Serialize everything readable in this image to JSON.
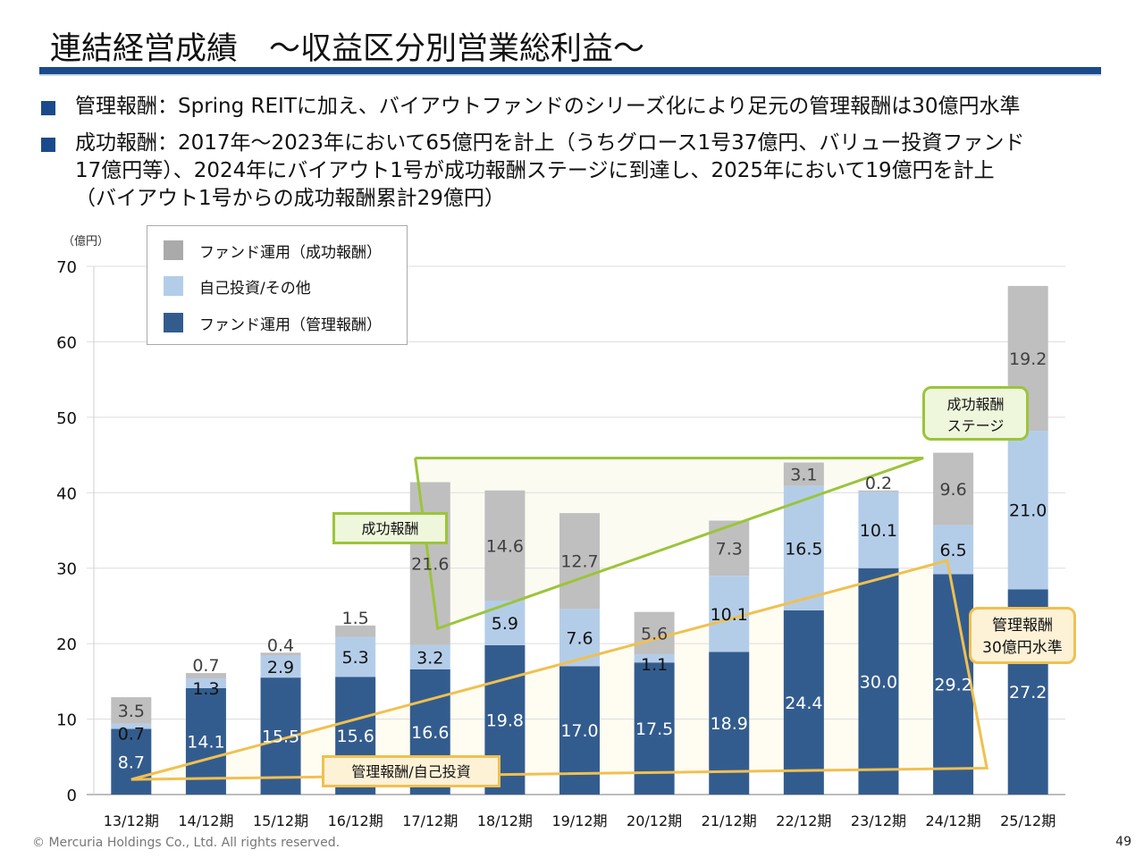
{
  "header": {
    "title": "連結経営成績　～収益区分別営業総利益～",
    "accent_color": "#1b4a8c"
  },
  "bullets": [
    {
      "lines": [
        "管理報酬：Spring REITに加え、バイアウトファンドのシリーズ化により足元の管理報酬は30億円水準"
      ]
    },
    {
      "lines": [
        "成功報酬：2017年～2023年において65億円を計上（うちグロース1号37億円、バリュー投資ファンド",
        "17億円等）、2024年にバイアウト1号が成功報酬ステージに到達し、2025年において19億円を計上",
        "（バイアウト1号からの成功報酬累計29億円）"
      ]
    }
  ],
  "chart_data": {
    "type": "bar",
    "stacked": true,
    "title": "",
    "xlabel": "",
    "ylabel": "（億円）",
    "ylim": [
      0,
      70
    ],
    "yticks": [
      0,
      10,
      20,
      30,
      40,
      50,
      60,
      70
    ],
    "grid": true,
    "legend_position": "top-left",
    "categories": [
      "13/12期",
      "14/12期",
      "15/12期",
      "16/12期",
      "17/12期",
      "18/12期",
      "19/12期",
      "20/12期",
      "21/12期",
      "22/12期",
      "23/12期",
      "24/12期",
      "25/12期"
    ],
    "series": [
      {
        "name": "ファンド運用（管理報酬）",
        "color": "#335c8e",
        "label_color": "#ffffff",
        "values": [
          8.7,
          14.1,
          15.5,
          15.6,
          16.6,
          19.8,
          17.0,
          17.5,
          18.9,
          24.4,
          30.0,
          29.2,
          27.2
        ]
      },
      {
        "name": "自己投資/その他",
        "color": "#b3cde9",
        "label_color": "#111111",
        "values": [
          0.7,
          1.3,
          2.9,
          5.3,
          3.2,
          5.9,
          7.6,
          1.1,
          10.1,
          16.5,
          10.1,
          6.5,
          21.0
        ]
      },
      {
        "name": "ファンド運用（成功報酬）",
        "color": "#bfbfbf",
        "label_color": "#404040",
        "values": [
          3.5,
          0.7,
          0.4,
          1.5,
          21.6,
          14.6,
          12.7,
          5.6,
          7.3,
          3.1,
          0.2,
          9.6,
          19.2
        ]
      }
    ],
    "legend_order": [
      "ファンド運用（成功報酬）",
      "自己投資/その他",
      "ファンド運用（管理報酬）"
    ],
    "annotations": [
      {
        "text": "成功報酬",
        "style": "green-box"
      },
      {
        "text": "成功報酬\nステージ",
        "style": "green-rounded"
      },
      {
        "text": "管理報酬/自己投資",
        "style": "orange-box"
      },
      {
        "text": "管理報酬\n30億円水準",
        "style": "orange-rounded"
      }
    ]
  },
  "callouts": {
    "success_fee": "成功報酬",
    "success_stage_line1": "成功報酬",
    "success_stage_line2": "ステージ",
    "mgmt_self": "管理報酬/自己投資",
    "mgmt_level_line1": "管理報酬",
    "mgmt_level_line2": "30億円水準"
  },
  "footer": {
    "copyright": "© Mercuria Holdings Co., Ltd. All rights reserved.",
    "page_number": "49"
  }
}
